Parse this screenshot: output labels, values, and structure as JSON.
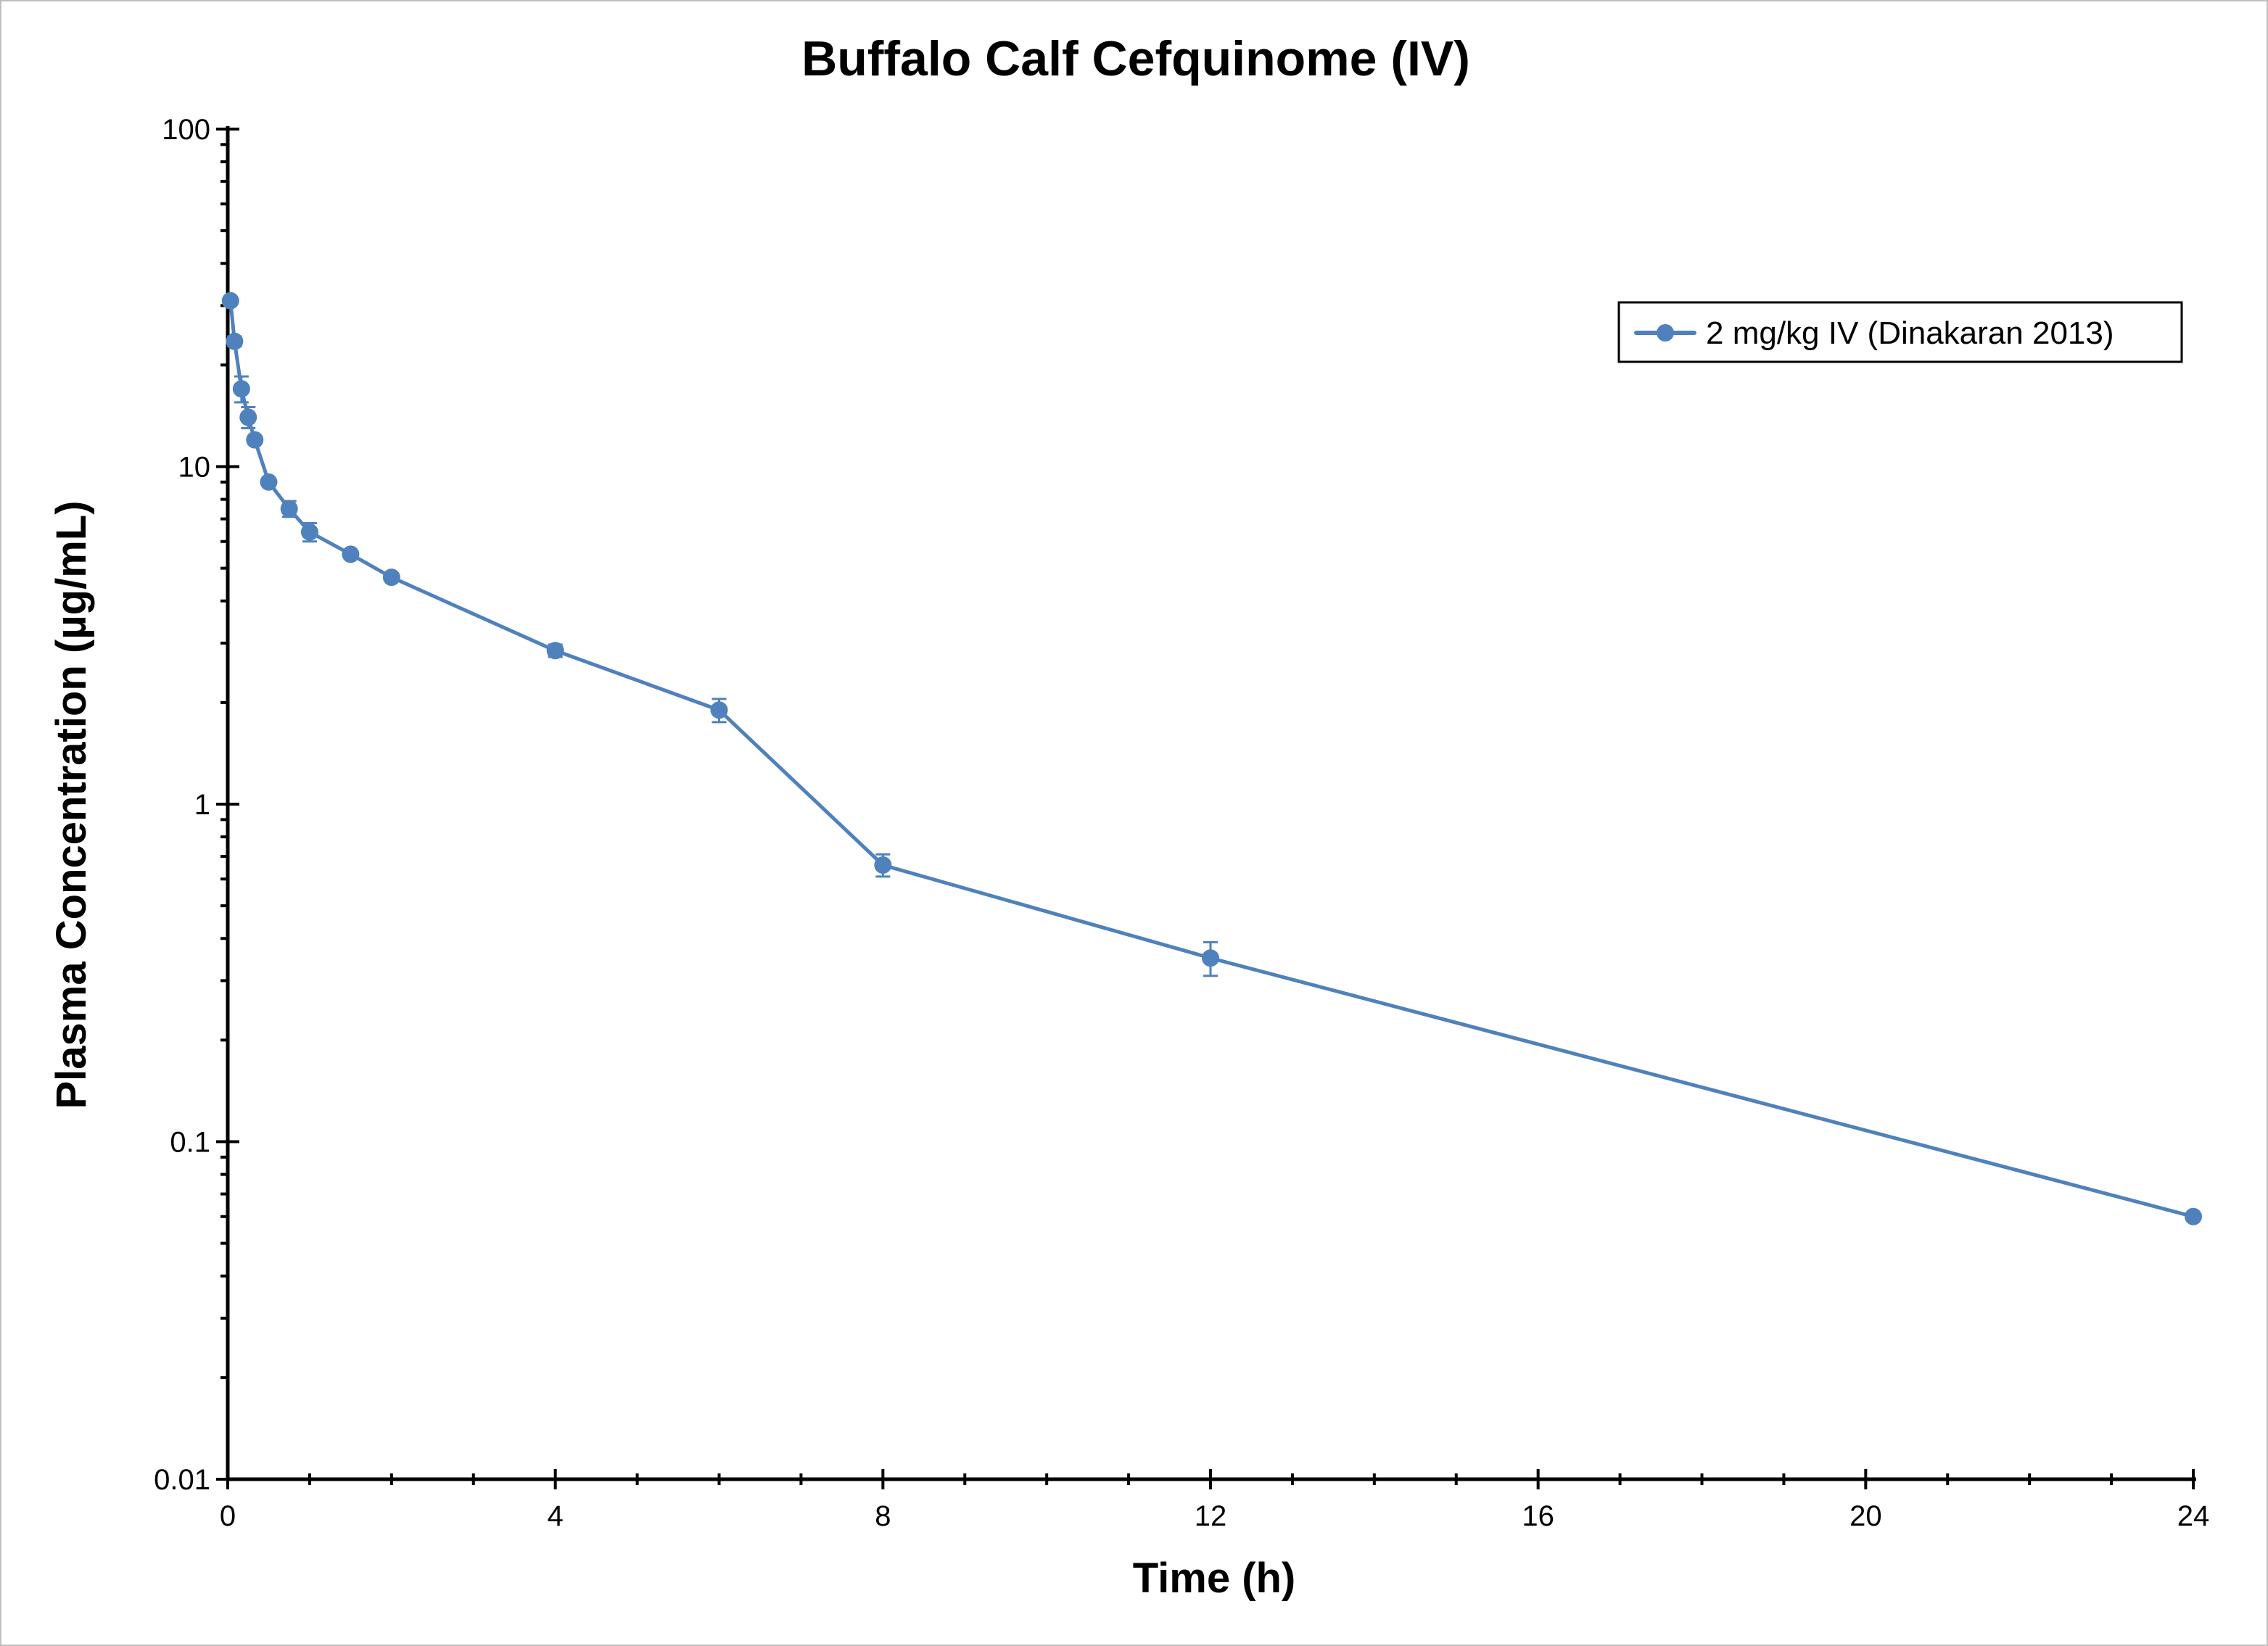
{
  "chart_data": {
    "type": "line",
    "title": "Buffalo Calf Cefquinome (IV)",
    "xlabel": "Time (h)",
    "ylabel": "Plasma Concentration (µg/mL)",
    "xlim": [
      0,
      24
    ],
    "ylim": [
      0.01,
      100
    ],
    "yscale": "log",
    "xticks": [
      0,
      4,
      8,
      12,
      16,
      20,
      24
    ],
    "yticks": [
      0.01,
      0.1,
      1,
      10,
      100
    ],
    "ytick_labels": [
      "0.01",
      "0.1",
      "1",
      "10",
      "100"
    ],
    "grid": false,
    "legend_position": "top-right",
    "series": [
      {
        "name": "2 mg/kg IV (Dinakaran 2013)",
        "color": "#4f81bd",
        "x": [
          0.033,
          0.083,
          0.167,
          0.25,
          0.33,
          0.5,
          0.75,
          1,
          1.5,
          2,
          4,
          6,
          8,
          12,
          24
        ],
        "y": [
          31,
          23.5,
          17,
          14,
          12,
          9,
          7.5,
          6.4,
          5.5,
          4.7,
          2.85,
          1.9,
          0.66,
          0.35,
          0.06
        ],
        "error": [
          0,
          0.8,
          1.5,
          1.0,
          0,
          0,
          0.4,
          0.4,
          0,
          0,
          0.12,
          0.15,
          0.05,
          0.04,
          0
        ]
      }
    ]
  }
}
